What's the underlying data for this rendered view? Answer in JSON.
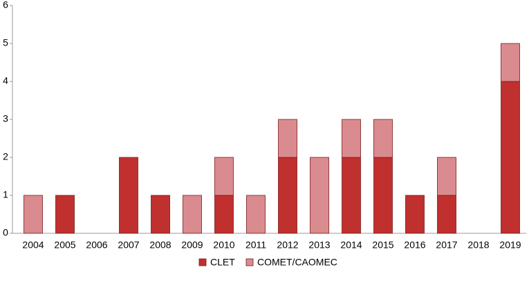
{
  "chart_data": {
    "type": "stacked_bar",
    "categories": [
      "2004",
      "2005",
      "2006",
      "2007",
      "2008",
      "2009",
      "2010",
      "2011",
      "2012",
      "2013",
      "2014",
      "2015",
      "2016",
      "2017",
      "2018",
      "2019"
    ],
    "series": [
      {
        "name": "CLET",
        "color": "#c0302f",
        "values": [
          0,
          1,
          0,
          2,
          1,
          0,
          1,
          0,
          2,
          0,
          2,
          2,
          1,
          1,
          0,
          4
        ]
      },
      {
        "name": "COMET/CAOMEC",
        "color": "#d98b8f",
        "values": [
          1,
          0,
          0,
          0,
          0,
          1,
          1,
          1,
          1,
          2,
          1,
          1,
          0,
          1,
          0,
          1
        ]
      }
    ],
    "ylim": [
      0,
      6
    ],
    "yticks": [
      0,
      1,
      2,
      3,
      4,
      5,
      6
    ],
    "grid": false,
    "legend": "bottom"
  }
}
